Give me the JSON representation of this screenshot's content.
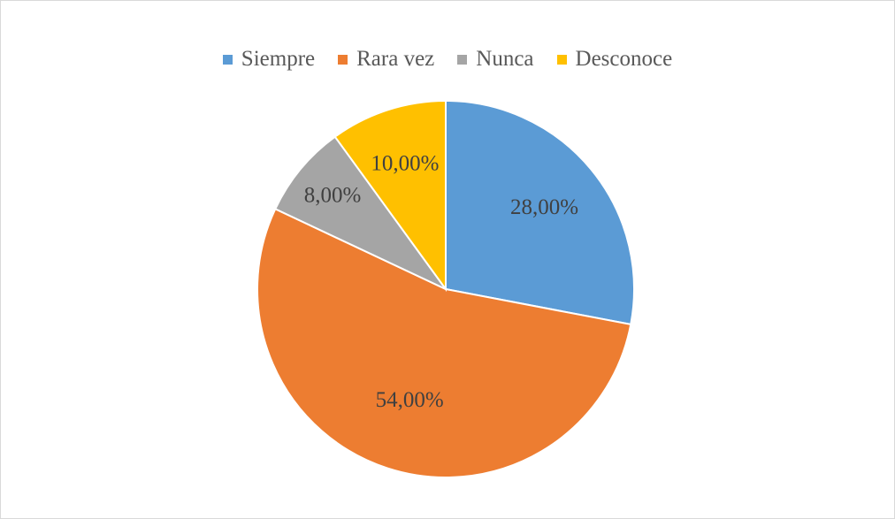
{
  "chart_data": {
    "type": "pie",
    "title": "",
    "categories": [
      "Siempre",
      "Rara vez",
      "Nunca",
      "Desconoce"
    ],
    "values": [
      28.0,
      54.0,
      8.0,
      10.0
    ],
    "value_labels": [
      "28,00%",
      "54,00%",
      "8,00%",
      "10,00%"
    ],
    "colors": [
      "#5B9BD5",
      "#ED7D31",
      "#A5A5A5",
      "#FFC000"
    ],
    "legend_position": "top",
    "start_angle": "12 o'clock",
    "direction": "clockwise"
  }
}
